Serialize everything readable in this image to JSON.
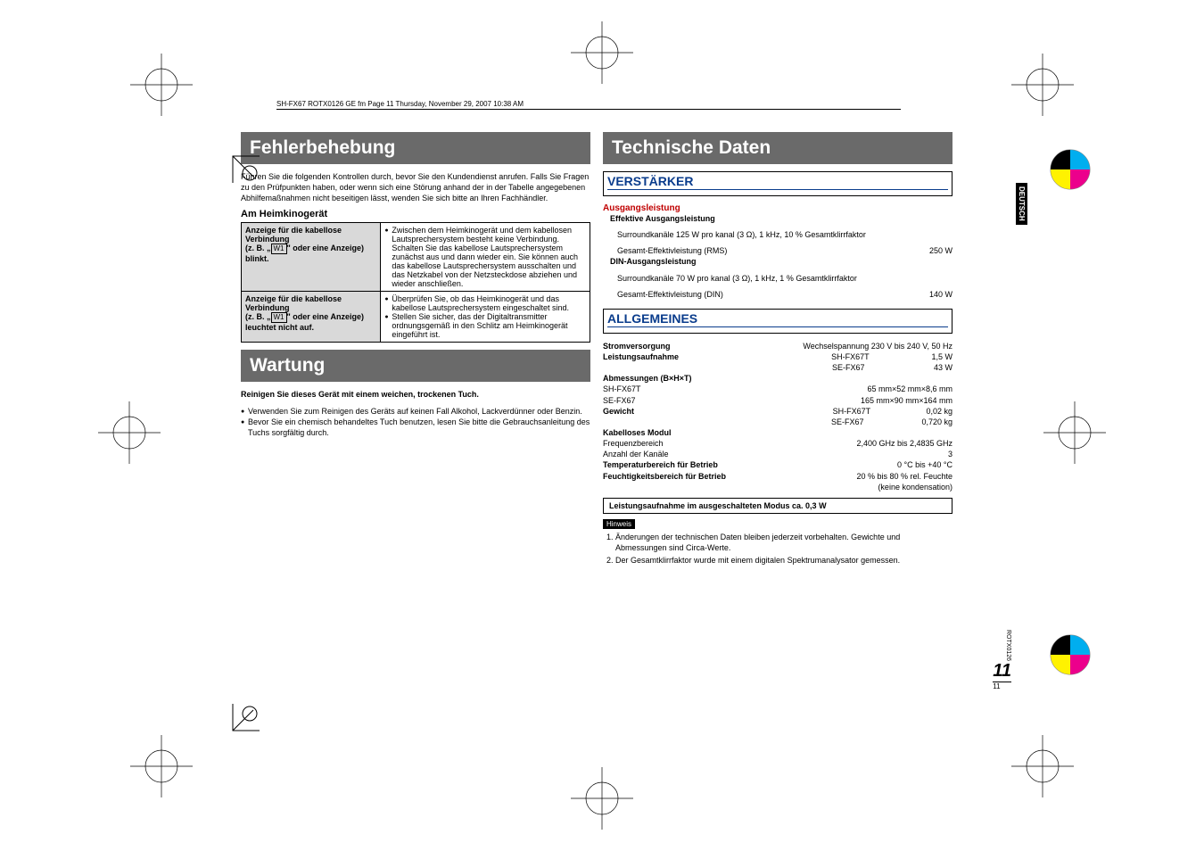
{
  "header_strip": "SH-FX67 ROTX0126 GE fm   Page 11   Thursday, November 29, 2007   10:38 AM",
  "side_tab": "DEUTSCH",
  "left": {
    "title1": "Fehlerbehebung",
    "intro": "Führen Sie die folgenden Kontrollen durch, bevor Sie den Kundendienst anrufen. Falls Sie Fragen zu den Prüfpunkten haben, oder wenn sich eine Störung anhand der in der Tabelle angegebenen Abhilfemaßnahmen nicht beseitigen lässt, wenden Sie sich bitte an Ihren Fachhändler.",
    "sub1": "Am Heimkinogerät",
    "rows": [
      {
        "l1": "Anzeige für die kabellose Verbindung",
        "l2": "(z. B. „",
        "lkey": "W1",
        "l3": "\" oder eine Anzeige) blinkt.",
        "r": "Zwischen dem Heimkinogerät und dem kabellosen Lautsprechersystem besteht keine Verbindung. Schalten Sie das kabellose Lautsprechersystem zunächst aus und dann wieder ein. Sie können auch das kabellose Lautsprechersystem ausschalten und das Netzkabel von der Netzsteckdose abziehen und wieder anschließen."
      },
      {
        "l1": "Anzeige für die kabellose Verbindung",
        "l2": "(z. B. „",
        "lkey": "W1",
        "l3": "\" oder eine Anzeige) leuchtet nicht auf.",
        "r1": "Überprüfen Sie, ob das Heimkinogerät und das kabellose Lautsprechersystem eingeschaltet sind.",
        "r2": "Stellen Sie sicher, das der Digitaltransmitter ordnungsgemäß in den Schlitz am Heimkinogerät eingeführt ist."
      }
    ],
    "title2": "Wartung",
    "clean_head": "Reinigen Sie dieses Gerät mit einem weichen, trockenen Tuch.",
    "clean1": "Verwenden Sie zum Reinigen des Geräts auf keinen Fall Alkohol, Lackverdünner oder Benzin.",
    "clean2": "Bevor Sie ein chemisch behandeltes Tuch benutzen, lesen Sie bitte die Gebrauchsanleitung des Tuchs sorgfältig durch."
  },
  "right": {
    "title": "Technische Daten",
    "amp_title": "VERSTÄRKER",
    "amp_head": "Ausgangsleistung",
    "amp_eff": "Effektive Ausgangsleistung",
    "amp_r1a": "Surroundkanäle  125 W pro kanal (3 Ω), 1 kHz, 10 % Gesamtklirrfaktor",
    "amp_r1b_l": "Gesamt-Effektivleistung (RMS)",
    "amp_r1b_r": "250 W",
    "amp_din": "DIN-Ausgangsleistung",
    "amp_r2a": "Surroundkanäle     70 W pro kanal (3 Ω), 1 kHz, 1 % Gesamtklirrfaktor",
    "amp_r2b_l": "Gesamt-Effektivleistung (DIN)",
    "amp_r2b_r": "140 W",
    "gen_title": "ALLGEMEINES",
    "gen": [
      {
        "l": "Stromversorgung",
        "r": "Wechselspannung 230 V bis 240 V, 50 Hz",
        "bold": true
      },
      {
        "l": "Leistungsaufnahme",
        "r": "SH-FX67T                            1,5 W",
        "bold": true
      },
      {
        "l": "",
        "r": "SE-FX67                               43 W"
      },
      {
        "l": "Abmessungen (B×H×T)",
        "r": "",
        "bold": true
      },
      {
        "l": "  SH-FX67T",
        "r": "65 mm×52 mm×8,6 mm"
      },
      {
        "l": "  SE-FX67",
        "r": "165 mm×90 mm×164 mm"
      },
      {
        "l": "Gewicht",
        "r": "SH-FX67T                         0,02 kg",
        "bold": true
      },
      {
        "l": "",
        "r": "SE-FX67                          0,720 kg"
      },
      {
        "l": "Kabelloses Modul",
        "r": "",
        "bold": true
      },
      {
        "l": "  Frequenzbereich",
        "r": "2,400 GHz bis 2,4835 GHz"
      },
      {
        "l": "  Anzahl der Kanäle",
        "r": "3"
      },
      {
        "l": "Temperaturbereich für Betrieb",
        "r": "0 °C bis +40 °C",
        "bold": true
      },
      {
        "l": "Feuchtigkeitsbereich für Betrieb",
        "r": "20 % bis 80 % rel. Feuchte",
        "bold": true
      },
      {
        "l": "",
        "r": "(keine kondensation)"
      }
    ],
    "power_box": "Leistungsaufnahme im ausgeschalteten Modus  ca. 0,3 W",
    "hinweis": "Hinweis",
    "notes": [
      "Änderungen der technischen Daten bleiben jederzeit vorbehalten. Gewichte und Abmessungen sind Circa-Werte.",
      "Der Gesamtklirrfaktor wurde mit einem digitalen Spektrumanalysator gemessen."
    ]
  },
  "footer": {
    "code": "ROTX0126",
    "big": "11",
    "small": "11"
  }
}
